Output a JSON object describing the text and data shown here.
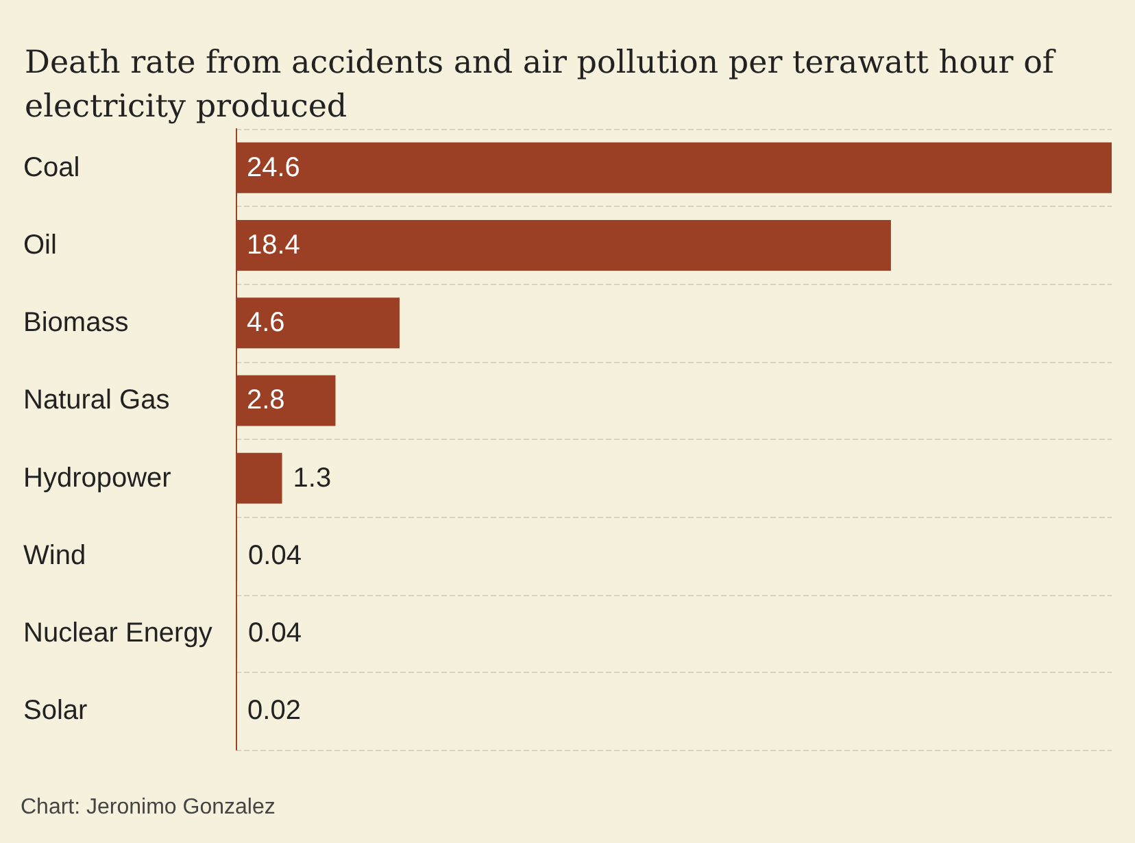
{
  "chart_data": {
    "type": "bar",
    "orientation": "horizontal",
    "title": "Death rate from accidents and air pollution per terawatt hour of electricity produced",
    "categories": [
      "Coal",
      "Oil",
      "Biomass",
      "Natural Gas",
      "Hydropower",
      "Wind",
      "Nuclear Energy",
      "Solar"
    ],
    "values": [
      24.6,
      18.4,
      4.6,
      2.8,
      1.3,
      0.04,
      0.04,
      0.02
    ],
    "color": "#9b3f25",
    "data_labels": true,
    "grid": "y",
    "annotations": [
      "Chart: Jeronimo Gonzalez"
    ]
  }
}
